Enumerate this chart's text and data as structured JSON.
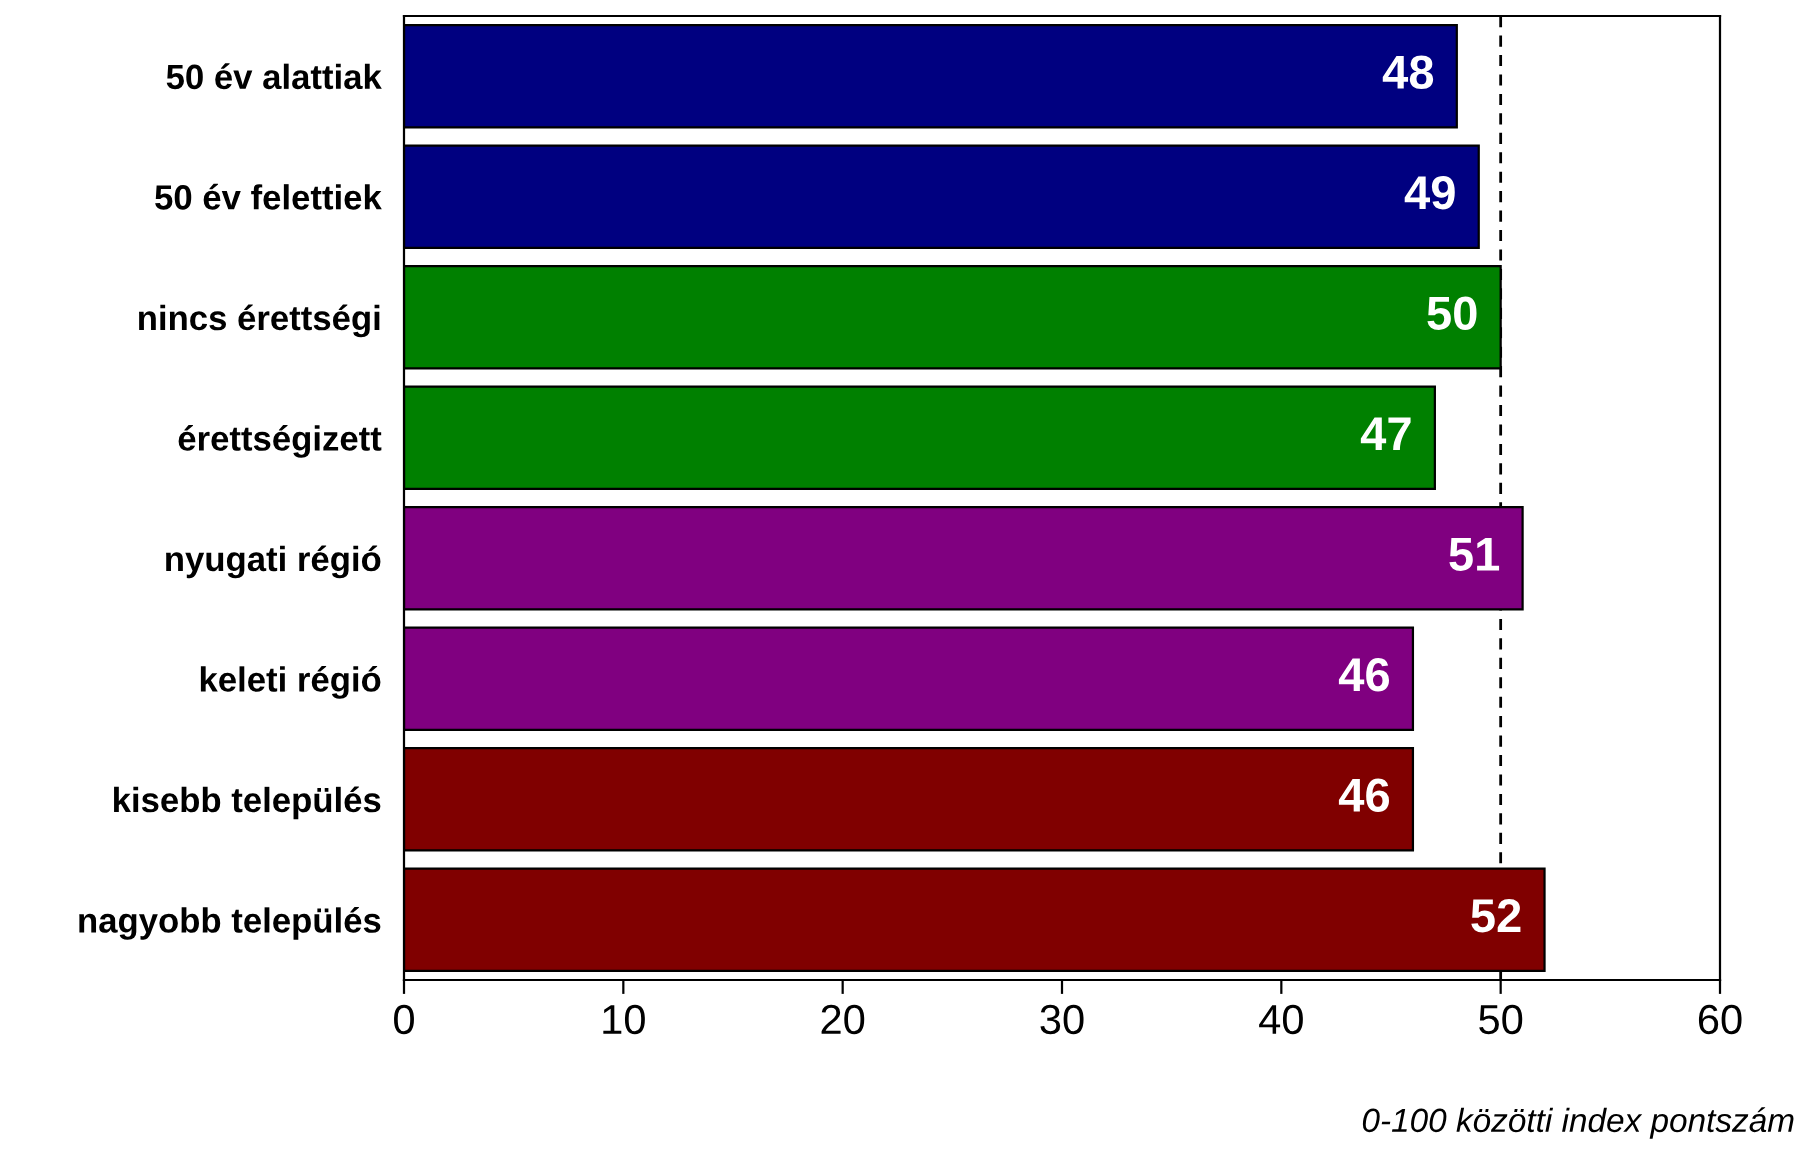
{
  "chart_data": {
    "type": "bar",
    "orientation": "horizontal",
    "categories": [
      "50 év alattiak",
      "50 év felettiek",
      "nincs érettségi",
      "érettségizett",
      "nyugati régió",
      "keleti régió",
      "kisebb település",
      "nagyobb település"
    ],
    "values": [
      48,
      49,
      50,
      47,
      51,
      46,
      46,
      52
    ],
    "colors": [
      "#000080",
      "#000080",
      "#008000",
      "#008000",
      "#800080",
      "#800080",
      "#800000",
      "#800000"
    ],
    "xlim": [
      0,
      60
    ],
    "xticks": [
      0,
      10,
      20,
      30,
      40,
      50,
      60
    ],
    "data_labels": true,
    "grid": false,
    "ref_lines": [
      {
        "axis": "x",
        "value": 50,
        "color": "#000000",
        "line_style": "dashed"
      }
    ],
    "annotations": [
      "0-100 közötti index pontszám"
    ]
  }
}
